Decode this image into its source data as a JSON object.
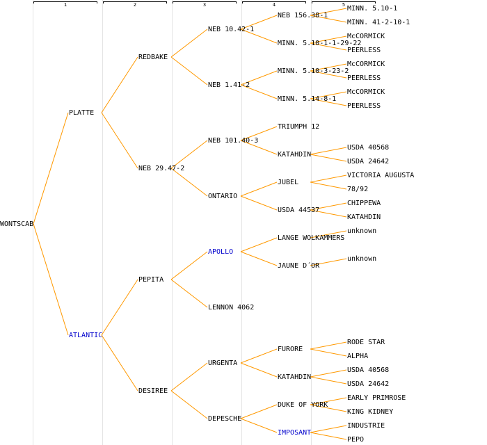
{
  "header": {
    "columns": [
      "1",
      "2",
      "3",
      "4",
      "5"
    ]
  },
  "tree": {
    "label": "WONTSCAB",
    "children": [
      {
        "label": "PLATTE",
        "children": [
          {
            "label": "REDBAKE",
            "children": [
              {
                "label": "NEB 10.42-1",
                "children": [
                  {
                    "label": "NEB 156.38-1",
                    "children": [
                      {
                        "label": "MINN. 5.10-1"
                      },
                      {
                        "label": "MINN. 41-2-10-1"
                      }
                    ]
                  },
                  {
                    "label": "MINN. 5.10-1-1-29-22",
                    "children": [
                      {
                        "label": "McCORMICK"
                      },
                      {
                        "label": "PEERLESS"
                      }
                    ]
                  }
                ]
              },
              {
                "label": "NEB 1.41-2",
                "children": [
                  {
                    "label": "MINN. 5.10-3-23-2",
                    "children": [
                      {
                        "label": "McCORMICK"
                      },
                      {
                        "label": "PEERLESS"
                      }
                    ]
                  },
                  {
                    "label": "MINN. 5.14-8-1",
                    "children": [
                      {
                        "label": "McCORMICK"
                      },
                      {
                        "label": "PEERLESS"
                      }
                    ]
                  }
                ]
              }
            ]
          },
          {
            "label": "NEB 29.47-2",
            "children": [
              {
                "label": "NEB 101.40-3",
                "children": [
                  {
                    "label": "TRIUMPH 12"
                  },
                  {
                    "label": "KATAHDIN",
                    "children": [
                      {
                        "label": "USDA 40568"
                      },
                      {
                        "label": "USDA 24642"
                      }
                    ]
                  }
                ]
              },
              {
                "label": "ONTARIO",
                "children": [
                  {
                    "label": "JUBEL",
                    "children": [
                      {
                        "label": "VICTORIA AUGUSTA"
                      },
                      {
                        "label": "78/92"
                      }
                    ]
                  },
                  {
                    "label": "USDA 44537",
                    "children": [
                      {
                        "label": "CHIPPEWA"
                      },
                      {
                        "label": "KATAHDIN"
                      }
                    ]
                  }
                ]
              }
            ]
          }
        ]
      },
      {
        "label": "ATLANTIC",
        "color": "#0000cc",
        "children": [
          {
            "label": "PEPITA",
            "children": [
              {
                "label": "APOLLO",
                "color": "#0000cc",
                "children": [
                  {
                    "label": "LANGE WOLKAMMERS",
                    "children": [
                      {
                        "label": "unknown"
                      }
                    ]
                  },
                  {
                    "label": "JAUNE D´OR",
                    "children": [
                      {
                        "label": "unknown"
                      }
                    ]
                  }
                ]
              },
              {
                "label": "LENNON 4062"
              }
            ]
          },
          {
            "label": "DESIREE",
            "children": [
              {
                "label": "URGENTA",
                "children": [
                  {
                    "label": "FURORE",
                    "children": [
                      {
                        "label": "RODE STAR"
                      },
                      {
                        "label": "ALPHA"
                      }
                    ]
                  },
                  {
                    "label": "KATAHDIN",
                    "children": [
                      {
                        "label": "USDA 40568"
                      },
                      {
                        "label": "USDA 24642"
                      }
                    ]
                  }
                ]
              },
              {
                "label": "DEPESCHE",
                "children": [
                  {
                    "label": "DUKE OF YORK",
                    "children": [
                      {
                        "label": "EARLY PRIMROSE"
                      },
                      {
                        "label": "KING KIDNEY"
                      }
                    ]
                  },
                  {
                    "label": "IMPOSANT",
                    "color": "#0000cc",
                    "children": [
                      {
                        "label": "INDUSTRIE"
                      },
                      {
                        "label": "PEPO"
                      }
                    ]
                  }
                ]
              }
            ]
          }
        ]
      }
    ]
  }
}
